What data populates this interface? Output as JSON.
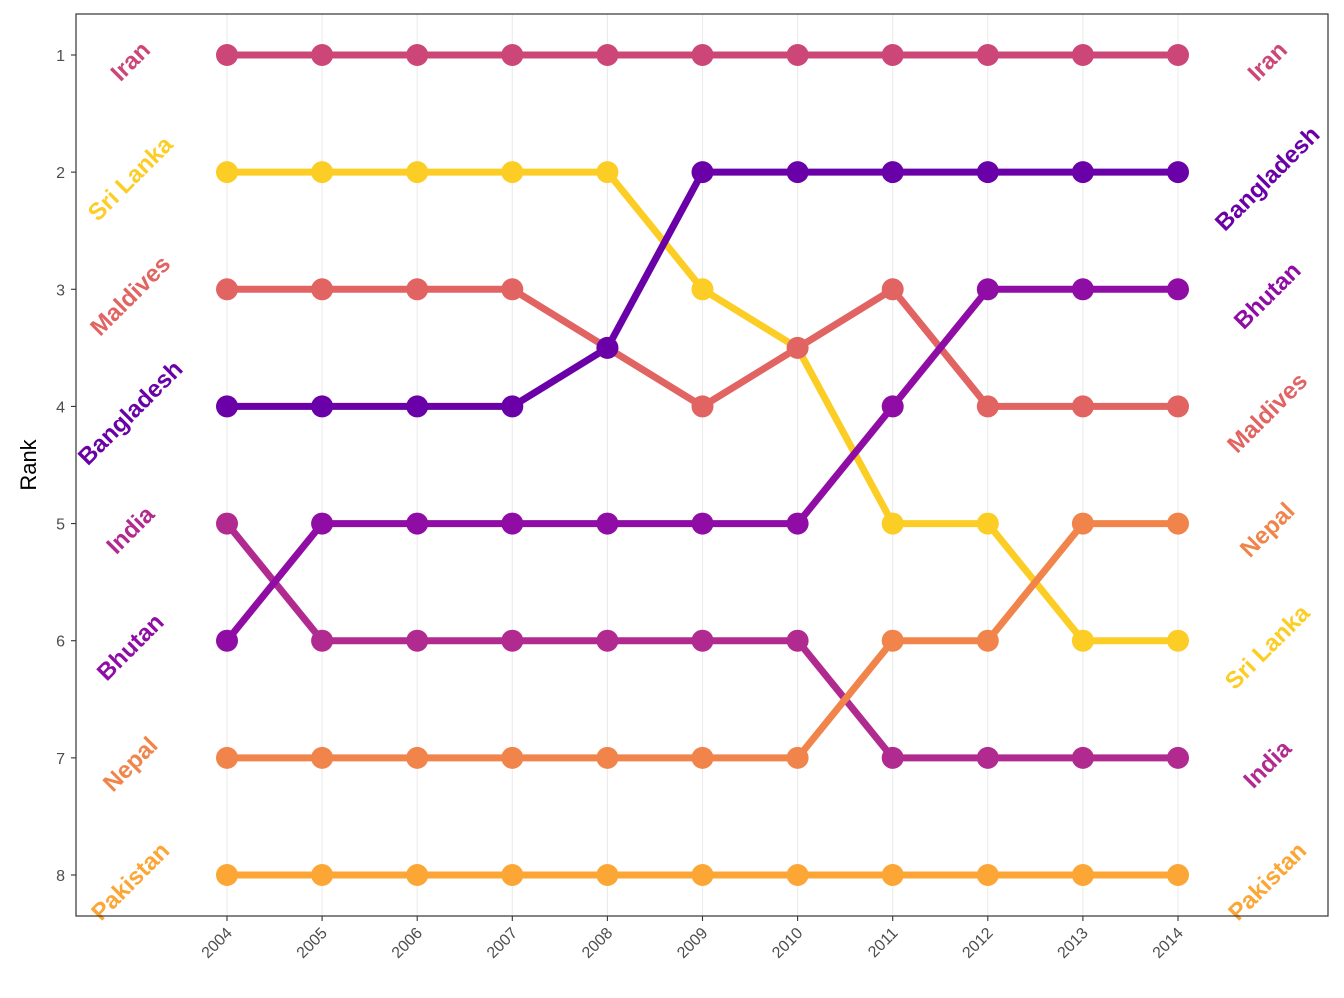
{
  "chart_data": {
    "type": "line",
    "title": "",
    "xlabel": "",
    "ylabel": "Rank",
    "x": [
      "2004",
      "2005",
      "2006",
      "2007",
      "2008",
      "2009",
      "2010",
      "2011",
      "2012",
      "2013",
      "2014"
    ],
    "yticks": [
      "1",
      "2",
      "3",
      "4",
      "5",
      "6",
      "7",
      "8"
    ],
    "ylim": [
      8.35,
      0.65
    ],
    "y_reversed": true,
    "grid": "vertical-major",
    "legend": "none",
    "series": [
      {
        "name": "Iran",
        "color": "#cc4778",
        "values": [
          1,
          1,
          1,
          1,
          1,
          1,
          1,
          1,
          1,
          1,
          1
        ]
      },
      {
        "name": "Sri Lanka",
        "color": "#fccd25",
        "values": [
          2,
          2,
          2,
          2,
          2,
          3,
          3.5,
          5,
          5,
          6,
          6
        ]
      },
      {
        "name": "Maldives",
        "color": "#e16462",
        "values": [
          3,
          3,
          3,
          3,
          3.5,
          4,
          3.5,
          3,
          4,
          4,
          4
        ]
      },
      {
        "name": "Bangladesh",
        "color": "#6a00a8",
        "values": [
          4,
          4,
          4,
          4,
          3.5,
          2,
          2,
          2,
          2,
          2,
          2
        ]
      },
      {
        "name": "India",
        "color": "#b12a90",
        "values": [
          5,
          6,
          6,
          6,
          6,
          6,
          6,
          7,
          7,
          7,
          7
        ]
      },
      {
        "name": "Bhutan",
        "color": "#8f0da4",
        "values": [
          6,
          5,
          5,
          5,
          5,
          5,
          5,
          4,
          3,
          3,
          3
        ]
      },
      {
        "name": "Nepal",
        "color": "#f1844b",
        "values": [
          7,
          7,
          7,
          7,
          7,
          7,
          7,
          6,
          6,
          5,
          5
        ]
      },
      {
        "name": "Pakistan",
        "color": "#fca636",
        "values": [
          8,
          8,
          8,
          8,
          8,
          8,
          8,
          8,
          8,
          8,
          8
        ]
      }
    ]
  }
}
